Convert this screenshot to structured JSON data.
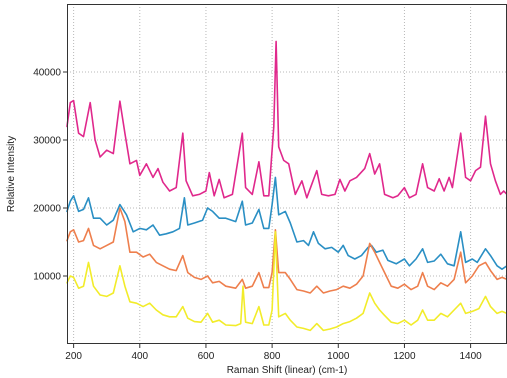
{
  "chart_data": {
    "type": "line",
    "title": "",
    "xlabel": "Raman Shift (linear) (cm-1)",
    "ylabel": "Relative Intensity",
    "xlim": [
      180,
      1510
    ],
    "ylim": [
      0,
      50000
    ],
    "x_ticks": [
      200,
      400,
      600,
      800,
      1000,
      1200,
      1400
    ],
    "y_ticks": [
      10000,
      20000,
      30000,
      40000
    ],
    "grid": true,
    "legend": "none",
    "series": [
      {
        "color": "#e0288c",
        "points": [
          [
            180,
            32000
          ],
          [
            190,
            35500
          ],
          [
            200,
            35800
          ],
          [
            215,
            31000
          ],
          [
            230,
            30500
          ],
          [
            250,
            35500
          ],
          [
            265,
            30000
          ],
          [
            280,
            27500
          ],
          [
            300,
            28500
          ],
          [
            320,
            28000
          ],
          [
            340,
            35700
          ],
          [
            355,
            31000
          ],
          [
            370,
            26500
          ],
          [
            390,
            27000
          ],
          [
            400,
            24800
          ],
          [
            420,
            26500
          ],
          [
            440,
            24500
          ],
          [
            455,
            25800
          ],
          [
            470,
            23800
          ],
          [
            490,
            22500
          ],
          [
            510,
            23000
          ],
          [
            530,
            31000
          ],
          [
            540,
            24000
          ],
          [
            560,
            21800
          ],
          [
            580,
            22000
          ],
          [
            600,
            22500
          ],
          [
            610,
            25200
          ],
          [
            625,
            21800
          ],
          [
            640,
            24200
          ],
          [
            655,
            21500
          ],
          [
            680,
            22000
          ],
          [
            710,
            31000
          ],
          [
            720,
            23000
          ],
          [
            740,
            22000
          ],
          [
            760,
            26800
          ],
          [
            775,
            21800
          ],
          [
            790,
            21800
          ],
          [
            805,
            32000
          ],
          [
            812,
            44500
          ],
          [
            820,
            29000
          ],
          [
            835,
            27000
          ],
          [
            850,
            26500
          ],
          [
            870,
            22000
          ],
          [
            890,
            24000
          ],
          [
            905,
            21500
          ],
          [
            920,
            23500
          ],
          [
            935,
            25500
          ],
          [
            950,
            22000
          ],
          [
            970,
            21800
          ],
          [
            990,
            22000
          ],
          [
            1005,
            24200
          ],
          [
            1020,
            22500
          ],
          [
            1035,
            24000
          ],
          [
            1055,
            24500
          ],
          [
            1080,
            25800
          ],
          [
            1095,
            28000
          ],
          [
            1110,
            25000
          ],
          [
            1125,
            26500
          ],
          [
            1140,
            22000
          ],
          [
            1165,
            21500
          ],
          [
            1180,
            21800
          ],
          [
            1200,
            23000
          ],
          [
            1215,
            21500
          ],
          [
            1235,
            22000
          ],
          [
            1255,
            26500
          ],
          [
            1270,
            23000
          ],
          [
            1290,
            22500
          ],
          [
            1305,
            24300
          ],
          [
            1320,
            22500
          ],
          [
            1335,
            24500
          ],
          [
            1345,
            23000
          ],
          [
            1370,
            31000
          ],
          [
            1385,
            24500
          ],
          [
            1400,
            24000
          ],
          [
            1415,
            25500
          ],
          [
            1430,
            26000
          ],
          [
            1445,
            33500
          ],
          [
            1460,
            26500
          ],
          [
            1475,
            24000
          ],
          [
            1490,
            22000
          ],
          [
            1500,
            22500
          ],
          [
            1510,
            22000
          ]
        ]
      },
      {
        "color": "#2a8fc4",
        "points": [
          [
            180,
            19500
          ],
          [
            190,
            21000
          ],
          [
            200,
            21800
          ],
          [
            215,
            19500
          ],
          [
            230,
            19800
          ],
          [
            245,
            21500
          ],
          [
            260,
            18500
          ],
          [
            280,
            18500
          ],
          [
            300,
            17500
          ],
          [
            320,
            18200
          ],
          [
            340,
            20500
          ],
          [
            360,
            19000
          ],
          [
            380,
            16500
          ],
          [
            400,
            17000
          ],
          [
            420,
            16800
          ],
          [
            440,
            17500
          ],
          [
            460,
            16000
          ],
          [
            480,
            16200
          ],
          [
            500,
            16500
          ],
          [
            520,
            17000
          ],
          [
            535,
            21500
          ],
          [
            545,
            17500
          ],
          [
            565,
            17800
          ],
          [
            590,
            18200
          ],
          [
            605,
            20000
          ],
          [
            620,
            19500
          ],
          [
            640,
            18500
          ],
          [
            660,
            18500
          ],
          [
            690,
            18000
          ],
          [
            710,
            21000
          ],
          [
            720,
            17500
          ],
          [
            740,
            17800
          ],
          [
            760,
            19800
          ],
          [
            775,
            17000
          ],
          [
            790,
            17000
          ],
          [
            800,
            20500
          ],
          [
            810,
            24500
          ],
          [
            820,
            19000
          ],
          [
            840,
            19500
          ],
          [
            855,
            17800
          ],
          [
            875,
            15000
          ],
          [
            895,
            15200
          ],
          [
            910,
            14500
          ],
          [
            925,
            16500
          ],
          [
            940,
            14800
          ],
          [
            960,
            14000
          ],
          [
            980,
            14200
          ],
          [
            1000,
            13500
          ],
          [
            1015,
            14500
          ],
          [
            1030,
            13000
          ],
          [
            1050,
            12500
          ],
          [
            1070,
            13000
          ],
          [
            1090,
            14200
          ],
          [
            1100,
            14500
          ],
          [
            1115,
            13500
          ],
          [
            1135,
            13800
          ],
          [
            1150,
            12300
          ],
          [
            1175,
            11800
          ],
          [
            1200,
            12500
          ],
          [
            1215,
            11500
          ],
          [
            1235,
            12500
          ],
          [
            1255,
            14000
          ],
          [
            1270,
            12000
          ],
          [
            1290,
            12200
          ],
          [
            1310,
            13200
          ],
          [
            1330,
            11800
          ],
          [
            1350,
            11500
          ],
          [
            1370,
            16500
          ],
          [
            1385,
            12000
          ],
          [
            1405,
            12500
          ],
          [
            1420,
            12000
          ],
          [
            1445,
            14000
          ],
          [
            1460,
            13000
          ],
          [
            1480,
            11500
          ],
          [
            1495,
            11000
          ],
          [
            1510,
            11500
          ]
        ]
      },
      {
        "color": "#ee7f4d",
        "points": [
          [
            180,
            15200
          ],
          [
            190,
            16500
          ],
          [
            200,
            16800
          ],
          [
            215,
            15000
          ],
          [
            230,
            15200
          ],
          [
            245,
            17000
          ],
          [
            260,
            14500
          ],
          [
            280,
            14000
          ],
          [
            300,
            14500
          ],
          [
            320,
            15000
          ],
          [
            340,
            20000
          ],
          [
            355,
            18000
          ],
          [
            370,
            13500
          ],
          [
            390,
            13500
          ],
          [
            410,
            12800
          ],
          [
            430,
            13200
          ],
          [
            450,
            12000
          ],
          [
            470,
            11500
          ],
          [
            490,
            11000
          ],
          [
            510,
            10800
          ],
          [
            530,
            13000
          ],
          [
            545,
            10500
          ],
          [
            565,
            9800
          ],
          [
            585,
            9500
          ],
          [
            605,
            10000
          ],
          [
            620,
            9000
          ],
          [
            640,
            9200
          ],
          [
            660,
            8500
          ],
          [
            690,
            8200
          ],
          [
            710,
            9500
          ],
          [
            720,
            8200
          ],
          [
            740,
            8500
          ],
          [
            760,
            10500
          ],
          [
            775,
            8300
          ],
          [
            790,
            8300
          ],
          [
            800,
            10500
          ],
          [
            810,
            16800
          ],
          [
            820,
            10500
          ],
          [
            840,
            10500
          ],
          [
            855,
            9500
          ],
          [
            875,
            8000
          ],
          [
            895,
            7800
          ],
          [
            915,
            7500
          ],
          [
            935,
            8500
          ],
          [
            955,
            7500
          ],
          [
            975,
            7800
          ],
          [
            995,
            8000
          ],
          [
            1015,
            8500
          ],
          [
            1035,
            8200
          ],
          [
            1055,
            8800
          ],
          [
            1075,
            10000
          ],
          [
            1095,
            14800
          ],
          [
            1110,
            13500
          ],
          [
            1125,
            12000
          ],
          [
            1140,
            10500
          ],
          [
            1160,
            8500
          ],
          [
            1180,
            8200
          ],
          [
            1200,
            8800
          ],
          [
            1220,
            8000
          ],
          [
            1240,
            8500
          ],
          [
            1255,
            10500
          ],
          [
            1270,
            8500
          ],
          [
            1290,
            8000
          ],
          [
            1310,
            9000
          ],
          [
            1330,
            8500
          ],
          [
            1350,
            9500
          ],
          [
            1370,
            13500
          ],
          [
            1385,
            9000
          ],
          [
            1405,
            10000
          ],
          [
            1425,
            11500
          ],
          [
            1445,
            12000
          ],
          [
            1460,
            10800
          ],
          [
            1480,
            9500
          ],
          [
            1495,
            9800
          ],
          [
            1510,
            9500
          ]
        ]
      },
      {
        "color": "#f2ec2a",
        "points": [
          [
            180,
            9000
          ],
          [
            190,
            10000
          ],
          [
            200,
            9800
          ],
          [
            215,
            8200
          ],
          [
            230,
            8500
          ],
          [
            245,
            12000
          ],
          [
            260,
            8500
          ],
          [
            280,
            7200
          ],
          [
            300,
            7000
          ],
          [
            320,
            7500
          ],
          [
            340,
            11500
          ],
          [
            355,
            8500
          ],
          [
            370,
            6200
          ],
          [
            390,
            6000
          ],
          [
            410,
            5500
          ],
          [
            430,
            6000
          ],
          [
            450,
            5000
          ],
          [
            470,
            4300
          ],
          [
            490,
            4000
          ],
          [
            510,
            4000
          ],
          [
            530,
            5500
          ],
          [
            545,
            3800
          ],
          [
            565,
            3300
          ],
          [
            585,
            3200
          ],
          [
            605,
            4500
          ],
          [
            620,
            3200
          ],
          [
            640,
            3500
          ],
          [
            660,
            2800
          ],
          [
            690,
            2700
          ],
          [
            705,
            3000
          ],
          [
            712,
            8500
          ],
          [
            720,
            3200
          ],
          [
            740,
            3000
          ],
          [
            760,
            5500
          ],
          [
            775,
            2800
          ],
          [
            790,
            2800
          ],
          [
            800,
            5000
          ],
          [
            810,
            16500
          ],
          [
            820,
            4000
          ],
          [
            840,
            4500
          ],
          [
            855,
            3500
          ],
          [
            875,
            2500
          ],
          [
            895,
            2300
          ],
          [
            915,
            2000
          ],
          [
            935,
            3000
          ],
          [
            955,
            2000
          ],
          [
            975,
            2200
          ],
          [
            995,
            2500
          ],
          [
            1015,
            3000
          ],
          [
            1035,
            3300
          ],
          [
            1055,
            3800
          ],
          [
            1075,
            4500
          ],
          [
            1095,
            7500
          ],
          [
            1110,
            6000
          ],
          [
            1125,
            5000
          ],
          [
            1140,
            4200
          ],
          [
            1160,
            3200
          ],
          [
            1180,
            3000
          ],
          [
            1200,
            3500
          ],
          [
            1220,
            2800
          ],
          [
            1240,
            3500
          ],
          [
            1255,
            5000
          ],
          [
            1270,
            3500
          ],
          [
            1290,
            3500
          ],
          [
            1310,
            4500
          ],
          [
            1330,
            4000
          ],
          [
            1350,
            5000
          ],
          [
            1370,
            6000
          ],
          [
            1385,
            4500
          ],
          [
            1405,
            4800
          ],
          [
            1425,
            5200
          ],
          [
            1445,
            7000
          ],
          [
            1460,
            5500
          ],
          [
            1480,
            4500
          ],
          [
            1495,
            4800
          ],
          [
            1510,
            4500
          ]
        ]
      }
    ]
  }
}
